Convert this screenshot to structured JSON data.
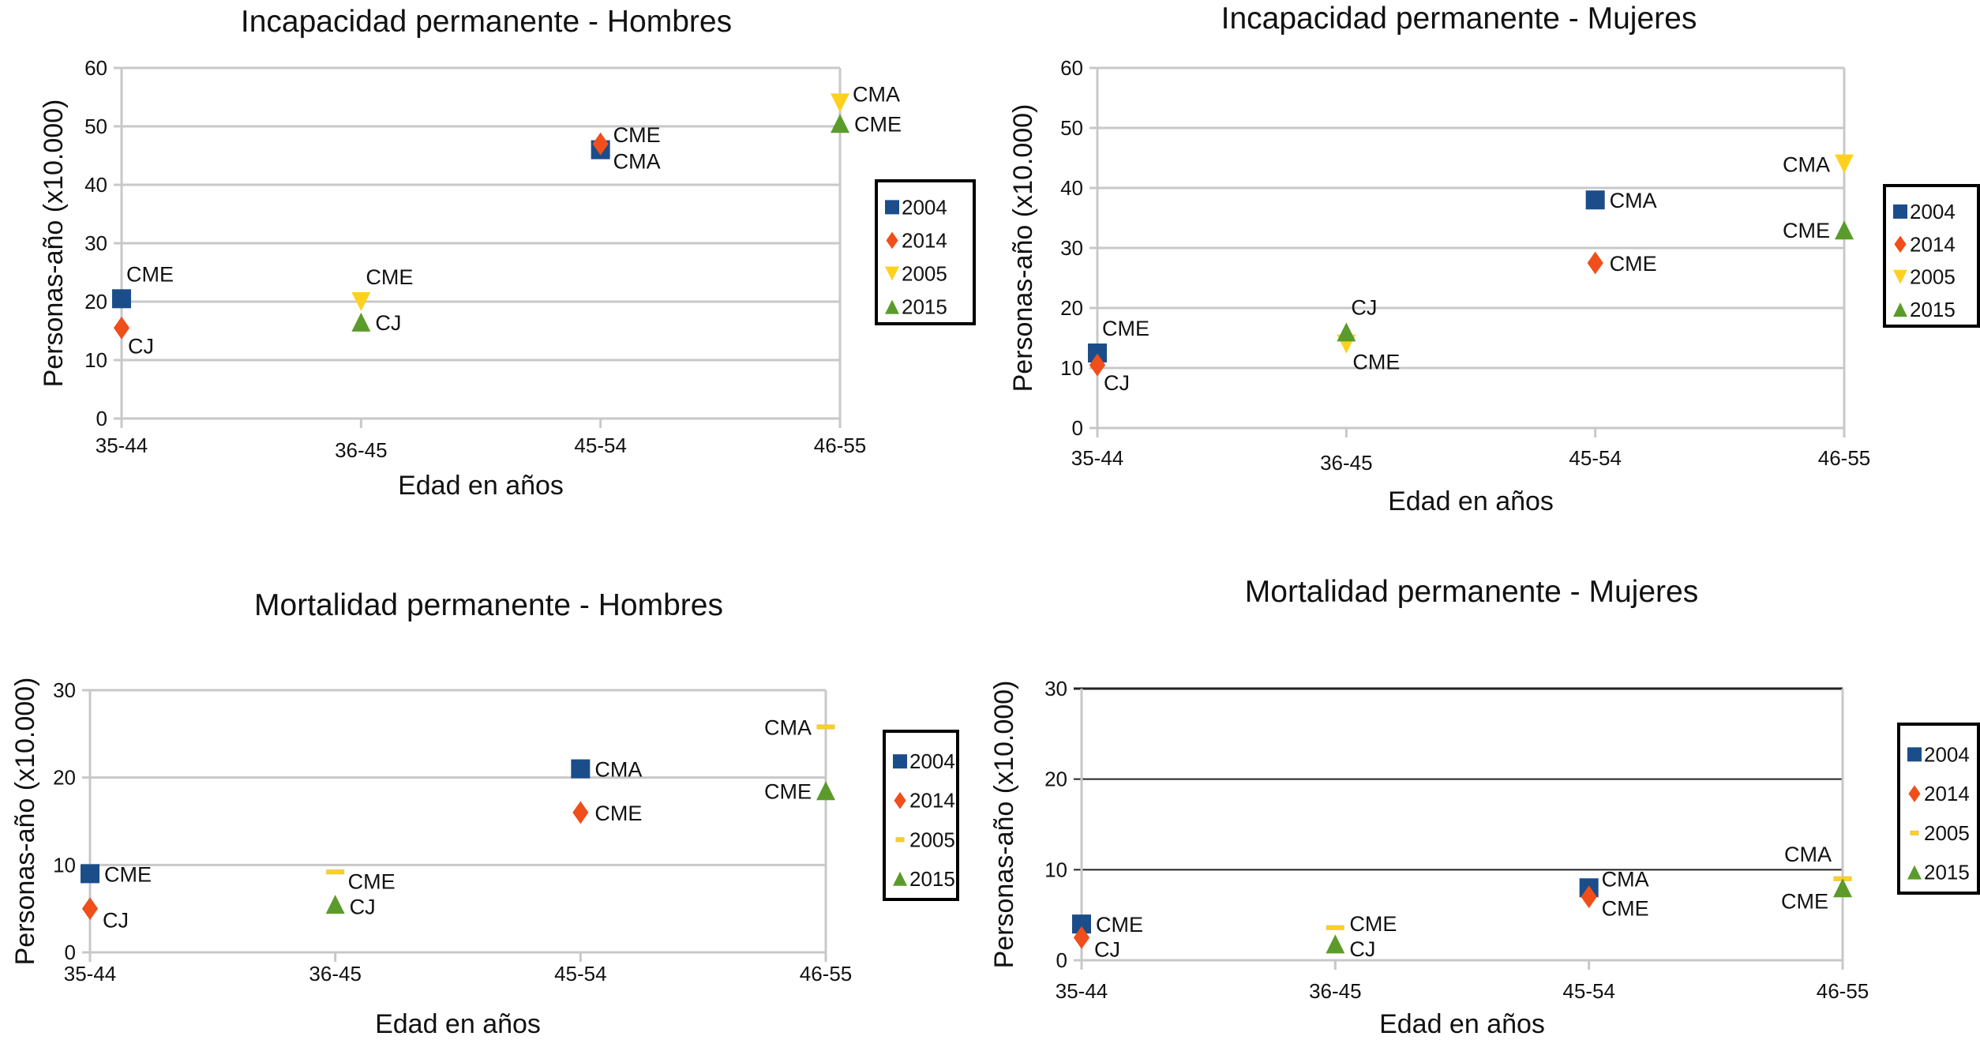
{
  "series_meta": [
    {
      "name": "2004",
      "marker": "square",
      "color": "#1b4d8a"
    },
    {
      "name": "2014",
      "marker": "diamond",
      "color": "#f04e1a"
    },
    {
      "name": "2005",
      "marker": "triangle-down",
      "color": "#ffd11f"
    },
    {
      "name": "2015",
      "marker": "triangle-up",
      "color": "#5b9b2b"
    }
  ],
  "chart_data": [
    {
      "type": "scatter",
      "title": "Incapacidad permanente - Hombres",
      "xlabel": "Edad en años",
      "ylabel": "Personas-año (x10.000)",
      "categories": [
        "35-44",
        "36-45",
        "45-54",
        "46-55"
      ],
      "ylim": [
        0,
        60
      ],
      "yticks": [
        0,
        10,
        20,
        30,
        40,
        50,
        60
      ],
      "grid": "gray",
      "legend": "right",
      "marker_2005": "triangle-down",
      "series": [
        {
          "name": "2004",
          "points": [
            {
              "x": "35-44",
              "y": 20.5,
              "label": "CME",
              "pos": "above-right"
            },
            {
              "x": "45-54",
              "y": 46,
              "label": "CMA",
              "pos": "right-down"
            }
          ]
        },
        {
          "name": "2014",
          "points": [
            {
              "x": "35-44",
              "y": 15.5,
              "label": "CJ",
              "pos": "below-right"
            },
            {
              "x": "45-54",
              "y": 47,
              "label": "CME",
              "pos": "right-up"
            }
          ]
        },
        {
          "name": "2005",
          "points": [
            {
              "x": "36-45",
              "y": 20,
              "label": "CME",
              "pos": "above-right"
            },
            {
              "x": "46-55",
              "y": 54,
              "label": "CMA",
              "pos": "right-up"
            }
          ]
        },
        {
          "name": "2015",
          "points": [
            {
              "x": "36-45",
              "y": 16.5,
              "label": "CJ",
              "pos": "right"
            },
            {
              "x": "46-55",
              "y": 50.5,
              "label": "CME",
              "pos": "right"
            }
          ]
        }
      ]
    },
    {
      "type": "scatter",
      "title": "Incapacidad permanente - Mujeres",
      "xlabel": "Edad en años",
      "ylabel": "Personas-año (x10.000)",
      "categories": [
        "35-44",
        "36-45",
        "45-54",
        "46-55"
      ],
      "ylim": [
        0,
        60
      ],
      "yticks": [
        0,
        10,
        20,
        30,
        40,
        50,
        60
      ],
      "grid": "gray",
      "legend": "right",
      "marker_2005": "triangle-down",
      "series": [
        {
          "name": "2004",
          "points": [
            {
              "x": "35-44",
              "y": 12.5,
              "label": "CME",
              "pos": "above-right"
            },
            {
              "x": "45-54",
              "y": 38,
              "label": "CMA",
              "pos": "right"
            }
          ]
        },
        {
          "name": "2014",
          "points": [
            {
              "x": "35-44",
              "y": 10.5,
              "label": "CJ",
              "pos": "below-right"
            },
            {
              "x": "45-54",
              "y": 27.5,
              "label": "CME",
              "pos": "right"
            }
          ]
        },
        {
          "name": "2005",
          "points": [
            {
              "x": "36-45",
              "y": 14,
              "label": "CME",
              "pos": "below-right"
            },
            {
              "x": "46-55",
              "y": 44,
              "label": "CMA",
              "pos": "left"
            }
          ]
        },
        {
          "name": "2015",
          "points": [
            {
              "x": "36-45",
              "y": 16,
              "label": "CJ",
              "pos": "above-right"
            },
            {
              "x": "46-55",
              "y": 33,
              "label": "CME",
              "pos": "left"
            }
          ]
        }
      ]
    },
    {
      "type": "scatter",
      "title": "Mortalidad permanente - Hombres",
      "xlabel": "Edad en años",
      "ylabel": "Personas-año (x10.000)",
      "categories": [
        "35-44",
        "36-45",
        "45-54",
        "46-55"
      ],
      "ylim": [
        0,
        30
      ],
      "yticks": [
        0,
        10,
        20,
        30
      ],
      "grid": "gray",
      "legend": "right",
      "marker_2005": "dash",
      "series": [
        {
          "name": "2004",
          "points": [
            {
              "x": "35-44",
              "y": 9,
              "label": "CME",
              "pos": "right"
            },
            {
              "x": "45-54",
              "y": 21,
              "label": "CMA",
              "pos": "right"
            }
          ]
        },
        {
          "name": "2014",
          "points": [
            {
              "x": "35-44",
              "y": 5,
              "label": "CJ",
              "pos": "right-down"
            },
            {
              "x": "45-54",
              "y": 16,
              "label": "CME",
              "pos": "right"
            }
          ]
        },
        {
          "name": "2005",
          "points": [
            {
              "x": "36-45",
              "y": 9.2,
              "label": "CME",
              "pos": "right-down"
            },
            {
              "x": "46-55",
              "y": 25.8,
              "label": "CMA",
              "pos": "left"
            }
          ]
        },
        {
          "name": "2015",
          "points": [
            {
              "x": "36-45",
              "y": 5.5,
              "label": "CJ",
              "pos": "right"
            },
            {
              "x": "46-55",
              "y": 18.5,
              "label": "CME",
              "pos": "left"
            }
          ]
        }
      ]
    },
    {
      "type": "scatter",
      "title": "Mortalidad permanente - Mujeres",
      "xlabel": "Edad en años",
      "ylabel": "Personas-año (x10.000)",
      "categories": [
        "35-44",
        "36-45",
        "45-54",
        "46-55"
      ],
      "ylim": [
        0,
        30
      ],
      "yticks": [
        0,
        10,
        20,
        30
      ],
      "grid": "black",
      "legend": "right",
      "marker_2005": "dash",
      "series": [
        {
          "name": "2004",
          "points": [
            {
              "x": "35-44",
              "y": 4,
              "label": "CME",
              "pos": "right"
            },
            {
              "x": "45-54",
              "y": 8,
              "label": "CMA",
              "pos": "right-up"
            }
          ]
        },
        {
          "name": "2014",
          "points": [
            {
              "x": "35-44",
              "y": 2.5,
              "label": "CJ",
              "pos": "right-down"
            },
            {
              "x": "45-54",
              "y": 7,
              "label": "CME",
              "pos": "right-down"
            }
          ]
        },
        {
          "name": "2005",
          "points": [
            {
              "x": "36-45",
              "y": 3.6,
              "label": "CME",
              "pos": "right"
            },
            {
              "x": "46-55",
              "y": 9,
              "label": "CMA",
              "pos": "above-left"
            }
          ]
        },
        {
          "name": "2015",
          "points": [
            {
              "x": "36-45",
              "y": 1.8,
              "label": "CJ",
              "pos": "right"
            },
            {
              "x": "46-55",
              "y": 8,
              "label": "CME",
              "pos": "left-down"
            }
          ]
        }
      ]
    }
  ]
}
